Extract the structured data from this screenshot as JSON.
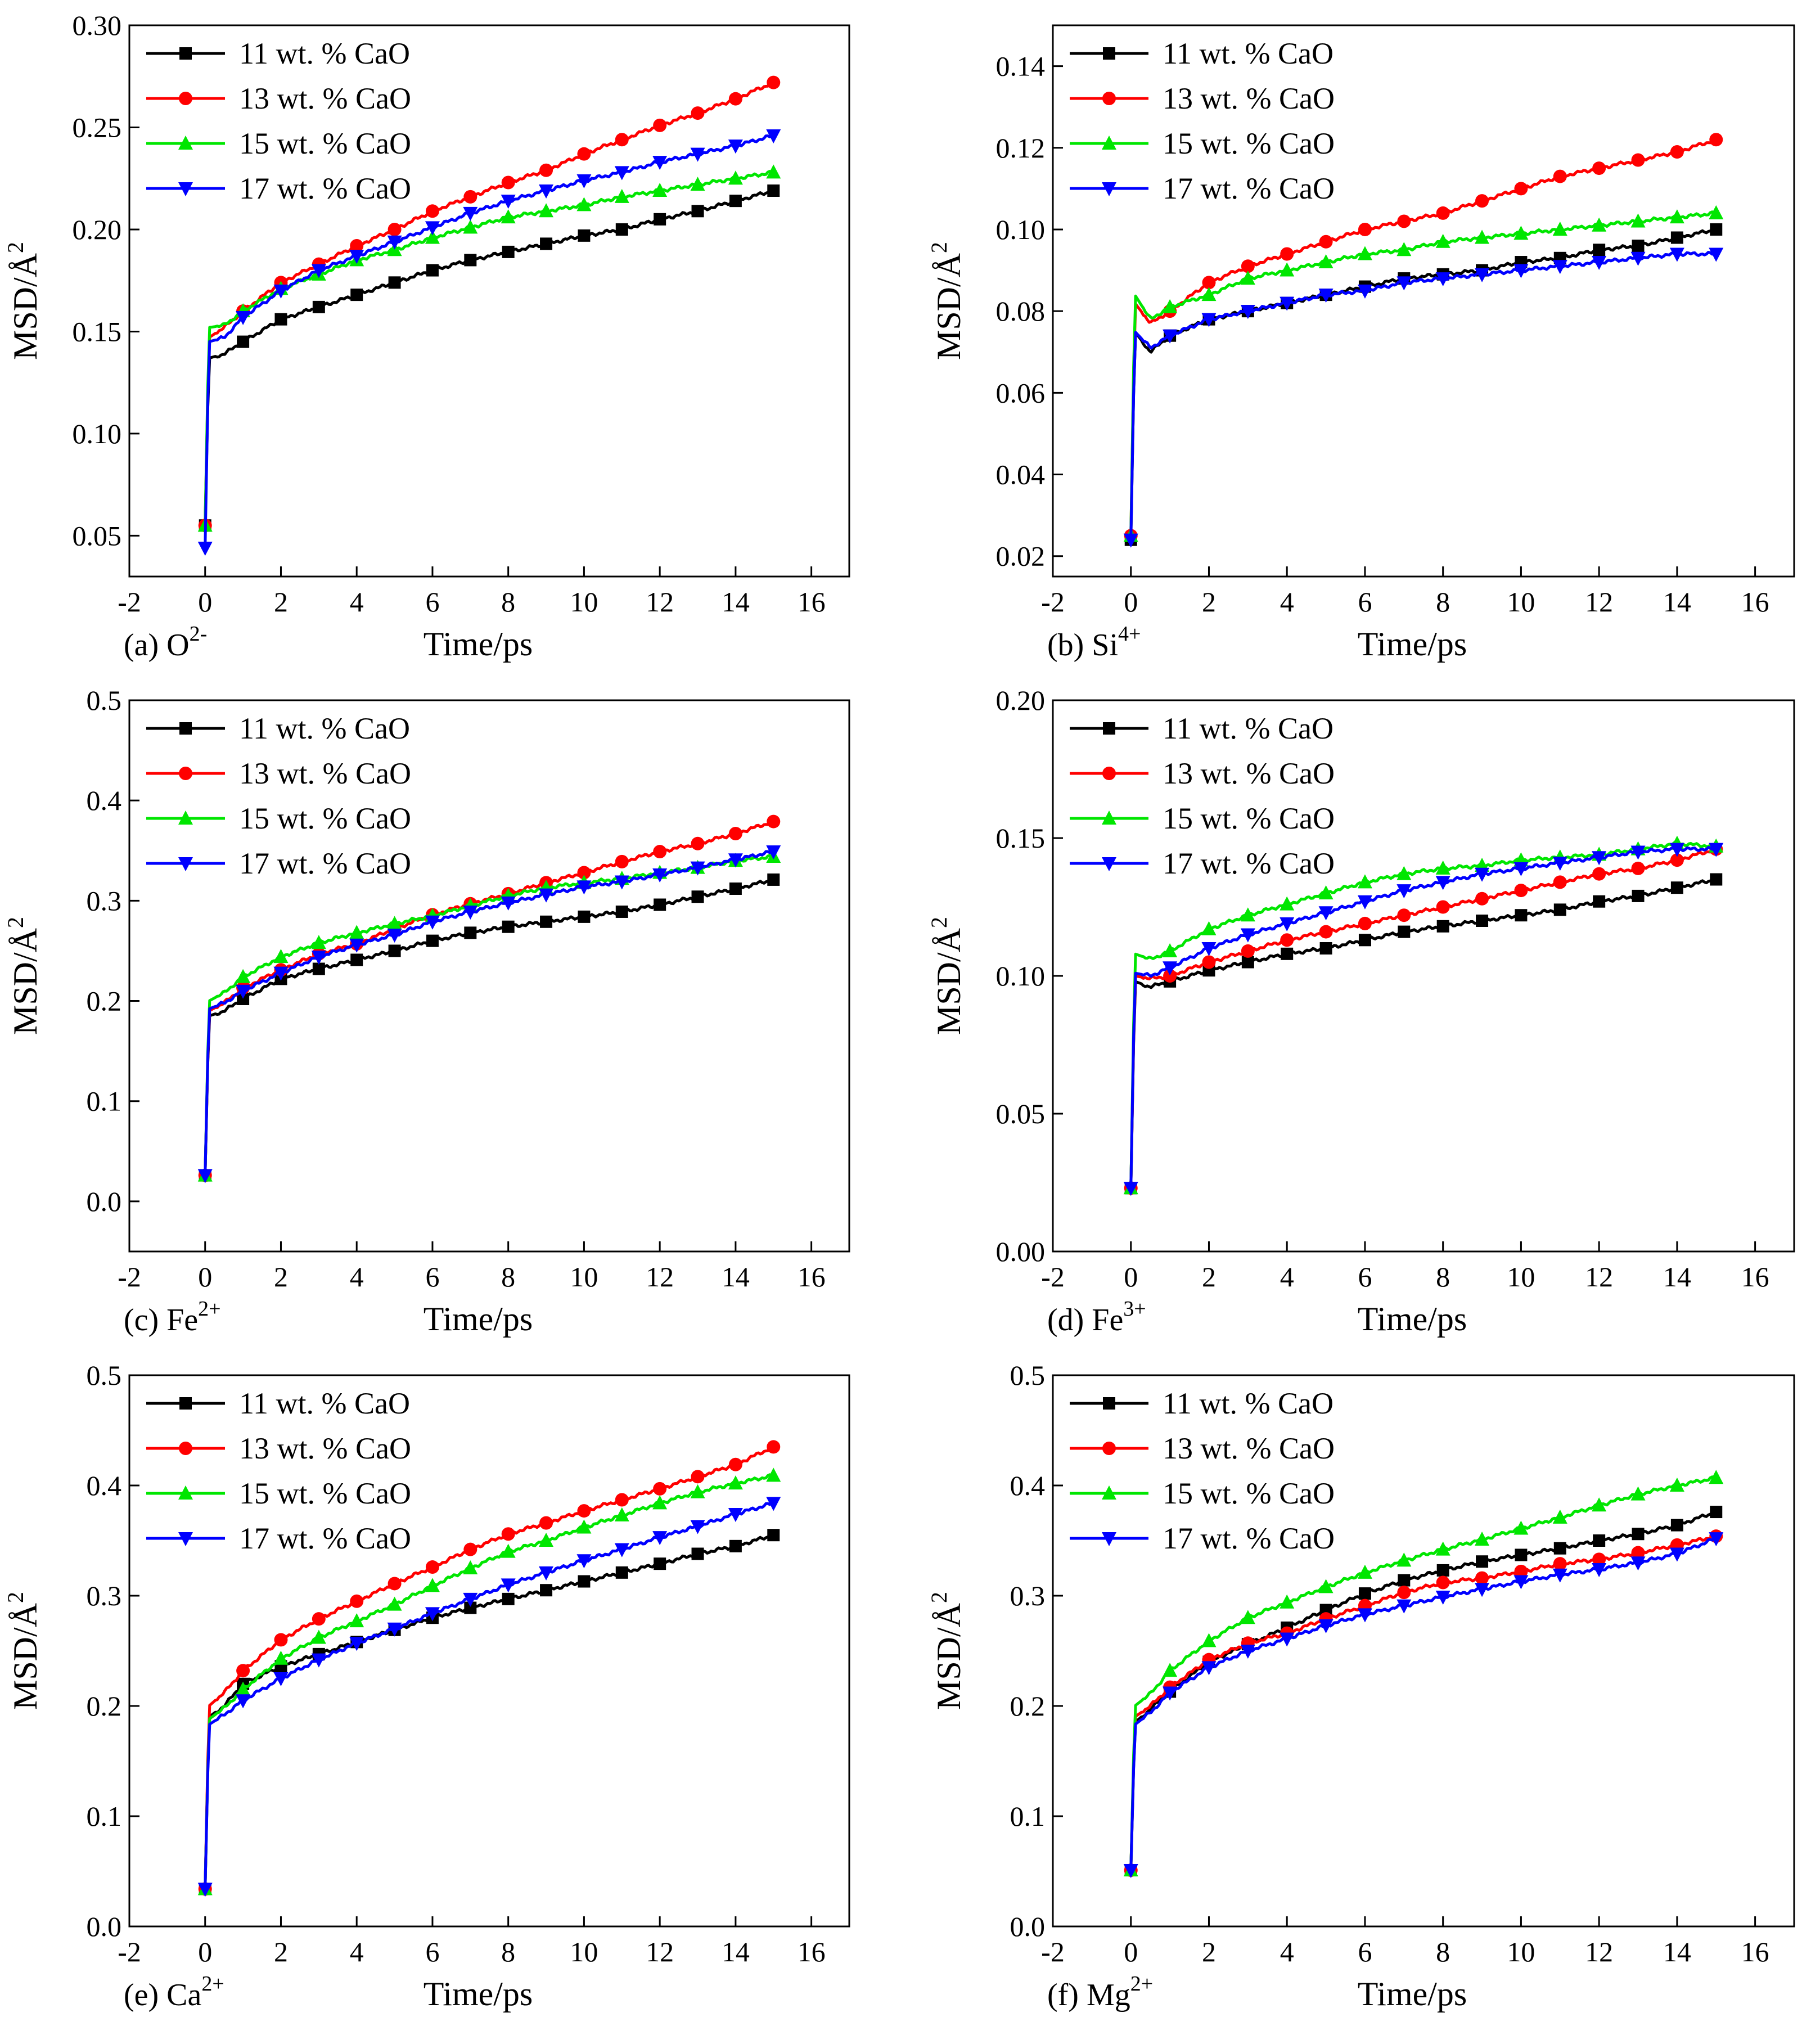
{
  "figure": {
    "series_names": [
      "11 wt. % CaO",
      "13 wt. % CaO",
      "15 wt. % CaO",
      "17 wt. % CaO"
    ],
    "series_colors": [
      "#000000",
      "#ff0000",
      "#00e600",
      "#0000ff"
    ],
    "series_markers": [
      "square",
      "circle",
      "triangle-up",
      "triangle-down"
    ]
  },
  "chart_data": [
    {
      "type": "line",
      "panel_label": "(a) O",
      "panel_label_sup": "2-",
      "xlabel": "Time/ps",
      "ylabel": "MSD/Å",
      "ylabel_sup": "2",
      "xlim": [
        -2,
        17
      ],
      "ylim": [
        0.03,
        0.3
      ],
      "xticks": [
        -2,
        0,
        2,
        4,
        6,
        8,
        10,
        12,
        14,
        16
      ],
      "xtick_labels": [
        "-2",
        "0",
        "2",
        "4",
        "6",
        "8",
        "10",
        "12",
        "14",
        "16"
      ],
      "yticks": [
        0.05,
        0.1,
        0.15,
        0.2,
        0.25,
        0.3
      ],
      "ytick_labels": [
        "0.05",
        "0.10",
        "0.15",
        "0.20",
        "0.25",
        "0.30"
      ],
      "legend_position": "top-left",
      "x": [
        0,
        0.1,
        0.5,
        1,
        2,
        3,
        4,
        5,
        6,
        7,
        8,
        9,
        10,
        11,
        12,
        13,
        14,
        15
      ],
      "series": [
        {
          "name": "11 wt. % CaO",
          "start": 0.055,
          "values": [
            0.055,
            0.137,
            0.139,
            0.145,
            0.156,
            0.162,
            0.168,
            0.174,
            0.18,
            0.185,
            0.189,
            0.193,
            0.197,
            0.2,
            0.205,
            0.209,
            0.214,
            0.219
          ]
        },
        {
          "name": "13 wt. % CaO",
          "start": 0.055,
          "values": [
            0.055,
            0.147,
            0.152,
            0.16,
            0.174,
            0.183,
            0.192,
            0.2,
            0.209,
            0.216,
            0.223,
            0.229,
            0.237,
            0.244,
            0.251,
            0.257,
            0.264,
            0.272
          ]
        },
        {
          "name": "15 wt. % CaO",
          "start": 0.055,
          "values": [
            0.055,
            0.152,
            0.153,
            0.16,
            0.171,
            0.178,
            0.185,
            0.19,
            0.196,
            0.201,
            0.206,
            0.209,
            0.212,
            0.216,
            0.219,
            0.222,
            0.225,
            0.228
          ]
        },
        {
          "name": "17 wt. % CaO",
          "start": 0.044,
          "values": [
            0.044,
            0.145,
            0.147,
            0.157,
            0.17,
            0.18,
            0.187,
            0.194,
            0.201,
            0.208,
            0.214,
            0.219,
            0.224,
            0.228,
            0.233,
            0.237,
            0.241,
            0.246
          ]
        }
      ]
    },
    {
      "type": "line",
      "panel_label": "(b) Si",
      "panel_label_sup": "4+",
      "xlabel": "Time/ps",
      "ylabel": "MSD/Å",
      "ylabel_sup": "2",
      "xlim": [
        -2,
        17
      ],
      "ylim": [
        0.015,
        0.15
      ],
      "xticks": [
        -2,
        0,
        2,
        4,
        6,
        8,
        10,
        12,
        14,
        16
      ],
      "xtick_labels": [
        "-2",
        "0",
        "2",
        "4",
        "6",
        "8",
        "10",
        "12",
        "14",
        "16"
      ],
      "yticks": [
        0.02,
        0.04,
        0.06,
        0.08,
        0.1,
        0.12,
        0.14
      ],
      "ytick_labels": [
        "0.02",
        "0.04",
        "0.06",
        "0.08",
        "0.10",
        "0.12",
        "0.14"
      ],
      "legend_position": "top-left",
      "x": [
        0,
        0.1,
        0.5,
        1,
        2,
        3,
        4,
        5,
        6,
        7,
        8,
        9,
        10,
        11,
        12,
        13,
        14,
        15
      ],
      "series": [
        {
          "name": "11 wt. % CaO",
          "values": [
            0.024,
            0.075,
            0.07,
            0.074,
            0.078,
            0.08,
            0.082,
            0.084,
            0.086,
            0.088,
            0.089,
            0.09,
            0.092,
            0.093,
            0.095,
            0.096,
            0.098,
            0.1
          ]
        },
        {
          "name": "13 wt. % CaO",
          "values": [
            0.025,
            0.082,
            0.077,
            0.08,
            0.087,
            0.091,
            0.094,
            0.097,
            0.1,
            0.102,
            0.104,
            0.107,
            0.11,
            0.113,
            0.115,
            0.117,
            0.119,
            0.122
          ]
        },
        {
          "name": "15 wt. % CaO",
          "values": [
            0.025,
            0.084,
            0.078,
            0.081,
            0.084,
            0.088,
            0.09,
            0.092,
            0.094,
            0.095,
            0.097,
            0.098,
            0.099,
            0.1,
            0.101,
            0.102,
            0.103,
            0.104
          ]
        },
        {
          "name": "17 wt. % CaO",
          "values": [
            0.024,
            0.075,
            0.071,
            0.074,
            0.078,
            0.08,
            0.082,
            0.084,
            0.085,
            0.087,
            0.088,
            0.089,
            0.09,
            0.091,
            0.092,
            0.093,
            0.094,
            0.094
          ]
        }
      ]
    },
    {
      "type": "line",
      "panel_label": "(c) Fe",
      "panel_label_sup": "2+",
      "xlabel": "Time/ps",
      "ylabel": "MSD/Å",
      "ylabel_sup": "2",
      "xlim": [
        -2,
        17
      ],
      "ylim": [
        -0.05,
        0.5
      ],
      "xticks": [
        -2,
        0,
        2,
        4,
        6,
        8,
        10,
        12,
        14,
        16
      ],
      "xtick_labels": [
        "-2",
        "0",
        "2",
        "4",
        "6",
        "8",
        "10",
        "12",
        "14",
        "16"
      ],
      "yticks": [
        0.0,
        0.1,
        0.2,
        0.3,
        0.4,
        0.5
      ],
      "ytick_labels": [
        "0.0",
        "0.1",
        "0.2",
        "0.3",
        "0.4",
        "0.5"
      ],
      "legend_position": "top-left",
      "x": [
        0,
        0.1,
        0.5,
        1,
        2,
        3,
        4,
        5,
        6,
        7,
        8,
        9,
        10,
        11,
        12,
        13,
        14,
        15
      ],
      "series": [
        {
          "name": "11 wt. % CaO",
          "values": [
            0.026,
            0.185,
            0.19,
            0.202,
            0.222,
            0.232,
            0.241,
            0.25,
            0.26,
            0.268,
            0.274,
            0.279,
            0.284,
            0.289,
            0.296,
            0.304,
            0.312,
            0.321
          ]
        },
        {
          "name": "13 wt. % CaO",
          "values": [
            0.026,
            0.19,
            0.198,
            0.213,
            0.231,
            0.247,
            0.257,
            0.272,
            0.286,
            0.297,
            0.307,
            0.318,
            0.328,
            0.339,
            0.349,
            0.357,
            0.367,
            0.379
          ]
        },
        {
          "name": "15 wt. % CaO",
          "values": [
            0.026,
            0.2,
            0.208,
            0.224,
            0.244,
            0.258,
            0.268,
            0.277,
            0.285,
            0.295,
            0.305,
            0.313,
            0.318,
            0.322,
            0.328,
            0.333,
            0.34,
            0.344
          ]
        },
        {
          "name": "17 wt. % CaO",
          "values": [
            0.026,
            0.192,
            0.198,
            0.21,
            0.228,
            0.244,
            0.256,
            0.266,
            0.279,
            0.289,
            0.298,
            0.306,
            0.314,
            0.319,
            0.326,
            0.333,
            0.341,
            0.349
          ]
        }
      ]
    },
    {
      "type": "line",
      "panel_label": "(d) Fe",
      "panel_label_sup": "3+",
      "xlabel": "Time/ps",
      "ylabel": "MSD/Å",
      "ylabel_sup": "2",
      "xlim": [
        -2,
        17
      ],
      "ylim": [
        0.0,
        0.2
      ],
      "xticks": [
        -2,
        0,
        2,
        4,
        6,
        8,
        10,
        12,
        14,
        16
      ],
      "xtick_labels": [
        "-2",
        "0",
        "2",
        "4",
        "6",
        "8",
        "10",
        "12",
        "14",
        "16"
      ],
      "yticks": [
        0.0,
        0.05,
        0.1,
        0.15,
        0.2
      ],
      "ytick_labels": [
        "0.00",
        "0.05",
        "0.10",
        "0.15",
        "0.20"
      ],
      "legend_position": "top-left",
      "x": [
        0,
        0.1,
        0.5,
        1,
        2,
        3,
        4,
        5,
        6,
        7,
        8,
        9,
        10,
        11,
        12,
        13,
        14,
        15
      ],
      "series": [
        {
          "name": "11 wt. % CaO",
          "values": [
            0.023,
            0.098,
            0.096,
            0.098,
            0.102,
            0.105,
            0.108,
            0.11,
            0.113,
            0.116,
            0.118,
            0.12,
            0.122,
            0.124,
            0.127,
            0.129,
            0.132,
            0.135
          ]
        },
        {
          "name": "13 wt. % CaO",
          "values": [
            0.023,
            0.1,
            0.099,
            0.1,
            0.105,
            0.109,
            0.113,
            0.116,
            0.119,
            0.122,
            0.125,
            0.128,
            0.131,
            0.134,
            0.137,
            0.139,
            0.142,
            0.146
          ]
        },
        {
          "name": "15 wt. % CaO",
          "values": [
            0.023,
            0.108,
            0.106,
            0.109,
            0.117,
            0.122,
            0.126,
            0.13,
            0.134,
            0.137,
            0.139,
            0.14,
            0.142,
            0.143,
            0.144,
            0.146,
            0.148,
            0.147
          ]
        },
        {
          "name": "17 wt. % CaO",
          "values": [
            0.023,
            0.101,
            0.1,
            0.103,
            0.11,
            0.115,
            0.119,
            0.123,
            0.127,
            0.131,
            0.134,
            0.137,
            0.139,
            0.141,
            0.143,
            0.145,
            0.146,
            0.146
          ]
        }
      ]
    },
    {
      "type": "line",
      "panel_label": "(e) Ca",
      "panel_label_sup": "2+",
      "xlabel": "Time/ps",
      "ylabel": "MSD/Å",
      "ylabel_sup": "2",
      "xlim": [
        -2,
        17
      ],
      "ylim": [
        0.0,
        0.5
      ],
      "xticks": [
        -2,
        0,
        2,
        4,
        6,
        8,
        10,
        12,
        14,
        16
      ],
      "xtick_labels": [
        "-2",
        "0",
        "2",
        "4",
        "6",
        "8",
        "10",
        "12",
        "14",
        "16"
      ],
      "yticks": [
        0.0,
        0.1,
        0.2,
        0.3,
        0.4,
        0.5
      ],
      "ytick_labels": [
        "0.0",
        "0.1",
        "0.2",
        "0.3",
        "0.4",
        "0.5"
      ],
      "legend_position": "top-left",
      "x": [
        0,
        0.1,
        0.5,
        1,
        2,
        3,
        4,
        5,
        6,
        7,
        8,
        9,
        10,
        11,
        12,
        13,
        14,
        15
      ],
      "series": [
        {
          "name": "11 wt. % CaO",
          "values": [
            0.034,
            0.19,
            0.2,
            0.22,
            0.236,
            0.247,
            0.258,
            0.269,
            0.28,
            0.289,
            0.297,
            0.305,
            0.313,
            0.321,
            0.329,
            0.338,
            0.345,
            0.355
          ]
        },
        {
          "name": "13 wt. % CaO",
          "values": [
            0.034,
            0.2,
            0.212,
            0.232,
            0.26,
            0.279,
            0.295,
            0.311,
            0.326,
            0.342,
            0.356,
            0.366,
            0.377,
            0.387,
            0.397,
            0.408,
            0.419,
            0.435
          ]
        },
        {
          "name": "15 wt. % CaO",
          "values": [
            0.034,
            0.188,
            0.198,
            0.215,
            0.243,
            0.262,
            0.277,
            0.292,
            0.309,
            0.325,
            0.34,
            0.35,
            0.362,
            0.373,
            0.384,
            0.394,
            0.402,
            0.409
          ]
        },
        {
          "name": "17 wt. % CaO",
          "values": [
            0.034,
            0.183,
            0.192,
            0.205,
            0.225,
            0.242,
            0.257,
            0.27,
            0.284,
            0.297,
            0.31,
            0.321,
            0.332,
            0.342,
            0.353,
            0.363,
            0.374,
            0.384
          ]
        }
      ]
    },
    {
      "type": "line",
      "panel_label": "(f) Mg",
      "panel_label_sup": "2+",
      "xlabel": "Time/ps",
      "ylabel": "MSD/Å",
      "ylabel_sup": "2",
      "xlim": [
        -2,
        17
      ],
      "ylim": [
        0.0,
        0.5
      ],
      "xticks": [
        -2,
        0,
        2,
        4,
        6,
        8,
        10,
        12,
        14,
        16
      ],
      "xtick_labels": [
        "-2",
        "0",
        "2",
        "4",
        "6",
        "8",
        "10",
        "12",
        "14",
        "16"
      ],
      "yticks": [
        0.0,
        0.1,
        0.2,
        0.3,
        0.4,
        0.5
      ],
      "ytick_labels": [
        "0.0",
        "0.1",
        "0.2",
        "0.3",
        "0.4",
        "0.5"
      ],
      "legend_position": "top-left",
      "x": [
        0,
        0.1,
        0.5,
        1,
        2,
        3,
        4,
        5,
        6,
        7,
        8,
        9,
        10,
        11,
        12,
        13,
        14,
        15
      ],
      "series": [
        {
          "name": "11 wt. % CaO",
          "values": [
            0.051,
            0.185,
            0.197,
            0.213,
            0.24,
            0.256,
            0.271,
            0.287,
            0.302,
            0.314,
            0.323,
            0.331,
            0.337,
            0.343,
            0.35,
            0.356,
            0.364,
            0.376
          ]
        },
        {
          "name": "13 wt. % CaO",
          "values": [
            0.051,
            0.19,
            0.2,
            0.217,
            0.242,
            0.257,
            0.266,
            0.279,
            0.291,
            0.303,
            0.312,
            0.316,
            0.322,
            0.329,
            0.333,
            0.339,
            0.346,
            0.354
          ]
        },
        {
          "name": "15 wt. % CaO",
          "values": [
            0.051,
            0.2,
            0.211,
            0.232,
            0.259,
            0.28,
            0.294,
            0.308,
            0.321,
            0.332,
            0.342,
            0.351,
            0.361,
            0.371,
            0.382,
            0.392,
            0.4,
            0.407
          ]
        },
        {
          "name": "17 wt. % CaO",
          "values": [
            0.051,
            0.183,
            0.194,
            0.212,
            0.235,
            0.25,
            0.261,
            0.273,
            0.283,
            0.291,
            0.299,
            0.306,
            0.313,
            0.319,
            0.324,
            0.33,
            0.338,
            0.352
          ]
        }
      ]
    }
  ]
}
